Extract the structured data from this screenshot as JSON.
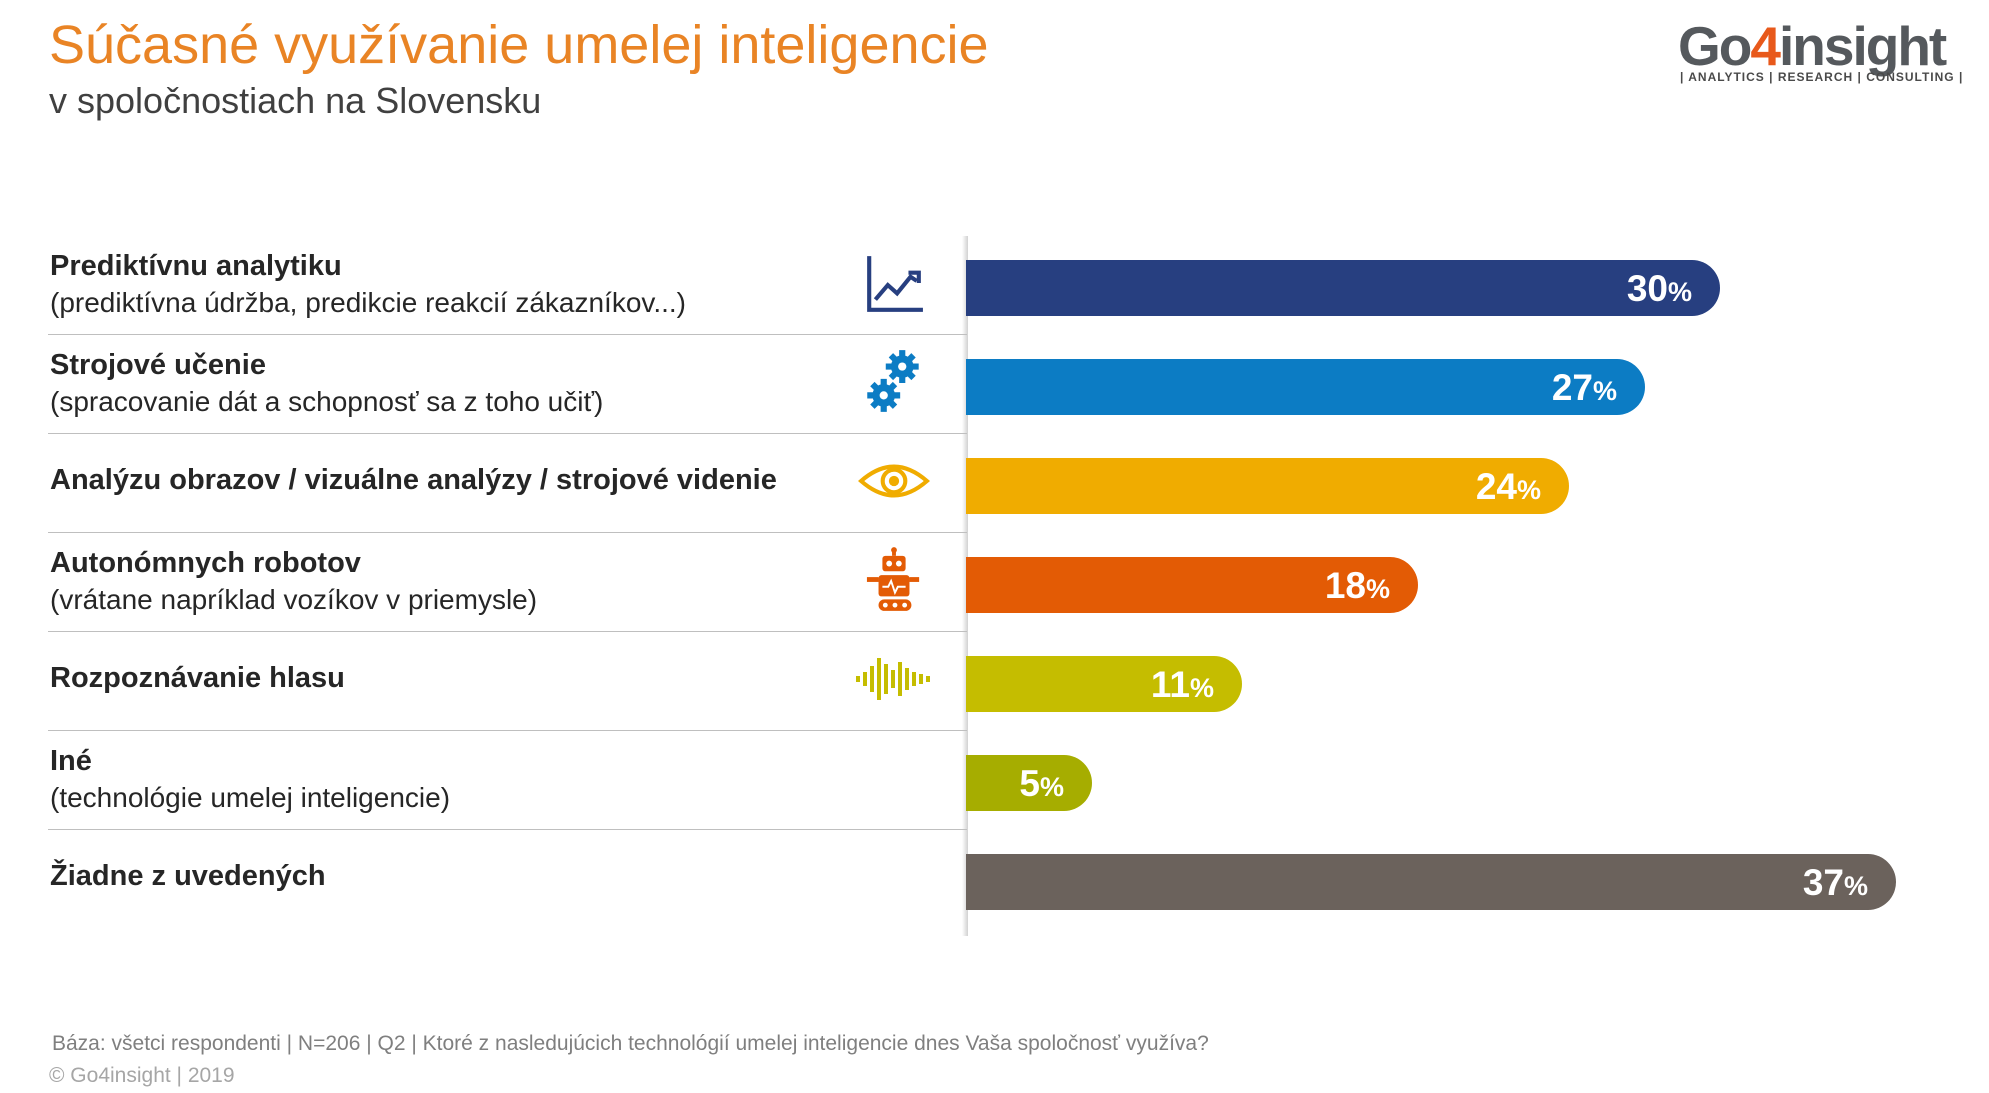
{
  "header": {
    "title": "Súčasné využívanie umelej inteligencie",
    "subtitle": "v spoločnostiach na Slovensku"
  },
  "logo": {
    "name_pre": "Go",
    "name_num": "4",
    "name_post": "insight",
    "tagline": "| ANALYTICS | RESEARCH | CONSULTING |"
  },
  "colors": {
    "title": "#e98425",
    "logo_accent": "#e8591b"
  },
  "chart_data": {
    "type": "bar",
    "orientation": "horizontal",
    "unit": "%",
    "categories": [
      "Prediktívnu analytiku",
      "Strojové učenie",
      "Analýzu obrazov / vizuálne analýzy / strojové videnie",
      "Autonómnych robotov",
      "Rozpoznávanie hlasu",
      "Iné",
      "Žiadne z uvedených"
    ],
    "sublabels": [
      "(prediktívna údržba, predikcie reakcií zákazníkov...)",
      "(spracovanie dát a schopnosť sa z toho učiť)",
      "",
      "(vrátane napríklad vozíkov v priemysle)",
      "",
      "(technológie umelej inteligencie)",
      ""
    ],
    "values": [
      30,
      27,
      24,
      18,
      11,
      5,
      37
    ],
    "colors": [
      "#273f80",
      "#0c7cc4",
      "#f0ac00",
      "#e35b05",
      "#c5bd00",
      "#a6ad00",
      "#6b625c"
    ],
    "icons": [
      "line-chart-icon",
      "gears-icon",
      "eye-icon",
      "robot-icon",
      "sound-wave-icon",
      "",
      ""
    ],
    "legend": "none",
    "grid": false,
    "xlim": [
      0,
      40
    ]
  },
  "footer": {
    "note": "Báza: všetci respondenti | N=206 | Q2 | Ktoré z nasledujúcich technológií umelej inteligencie dnes Vaša spoločnosť využíva?",
    "copyright": "© Go4insight | 2019"
  }
}
